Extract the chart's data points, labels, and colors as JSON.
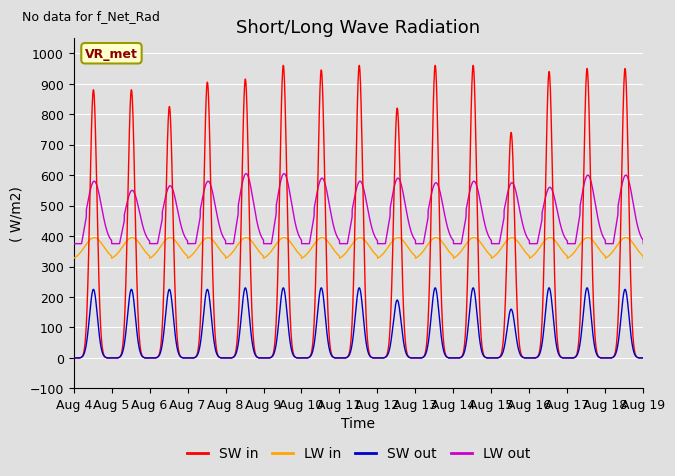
{
  "title": "Short/Long Wave Radiation",
  "xlabel": "Time",
  "ylabel": "( W/m2)",
  "ylim": [
    -100,
    1050
  ],
  "xlim": [
    0,
    360
  ],
  "x_tick_labels": [
    "Aug 4",
    "Aug 5",
    "Aug 6",
    "Aug 7",
    "Aug 8",
    "Aug 9",
    "Aug 10",
    "Aug 11",
    "Aug 12",
    "Aug 13",
    "Aug 14",
    "Aug 15",
    "Aug 16",
    "Aug 17",
    "Aug 18",
    "Aug 19"
  ],
  "x_tick_positions": [
    0,
    24,
    48,
    72,
    96,
    120,
    144,
    168,
    192,
    216,
    240,
    264,
    288,
    312,
    336,
    360
  ],
  "annotation_text": "No data for f_Net_Rad",
  "legend_label": "VR_met",
  "legend_entries": [
    "SW in",
    "LW in",
    "SW out",
    "LW out"
  ],
  "legend_colors": [
    "#ff0000",
    "#ffa500",
    "#0000cc",
    "#cc00cc"
  ],
  "sw_in_peaks": [
    880,
    880,
    825,
    905,
    915,
    960,
    945,
    960,
    820,
    960,
    960,
    740,
    940,
    950,
    950
  ],
  "sw_out_peaks": [
    225,
    225,
    225,
    225,
    230,
    230,
    230,
    230,
    190,
    230,
    230,
    160,
    230,
    230,
    225
  ],
  "lw_out_peaks": [
    580,
    550,
    565,
    580,
    605,
    605,
    590,
    580,
    590,
    575,
    580,
    575,
    560,
    600,
    600
  ],
  "lw_out_base": 390,
  "lw_in_base": 340,
  "lw_in_peak": 400,
  "background_color": "#e0e0e0",
  "grid_color": "#ffffff",
  "title_fontsize": 13,
  "label_fontsize": 10,
  "tick_fontsize": 9
}
